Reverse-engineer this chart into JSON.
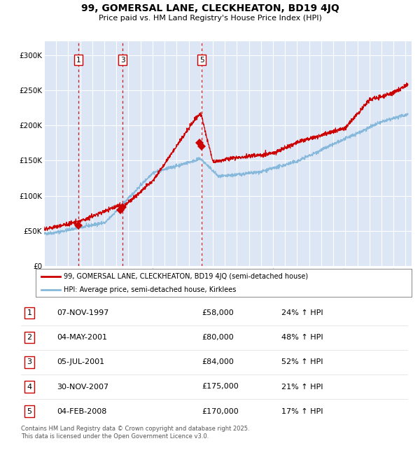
{
  "title": "99, GOMERSAL LANE, CLECKHEATON, BD19 4JQ",
  "subtitle": "Price paid vs. HM Land Registry's House Price Index (HPI)",
  "bg_color": "#dce6f5",
  "grid_color": "#ffffff",
  "red_line_color": "#cc0000",
  "blue_line_color": "#85b8db",
  "ylim": [
    0,
    320000
  ],
  "yticks": [
    0,
    50000,
    100000,
    150000,
    200000,
    250000,
    300000
  ],
  "ytick_labels": [
    "£0",
    "£50K",
    "£100K",
    "£150K",
    "£200K",
    "£250K",
    "£300K"
  ],
  "x_start_year": 1995,
  "x_end_year": 2025,
  "sale_events": [
    {
      "label": "1",
      "year": 1997.85,
      "price": 58000
    },
    {
      "label": "2",
      "year": 2001.34,
      "price": 80000
    },
    {
      "label": "3",
      "year": 2001.51,
      "price": 84000
    },
    {
      "label": "4",
      "year": 2007.92,
      "price": 175000
    },
    {
      "label": "5",
      "year": 2008.09,
      "price": 170000
    }
  ],
  "vline_labels": [
    "1",
    "3",
    "5"
  ],
  "vline_years": [
    1997.85,
    2001.51,
    2008.09
  ],
  "legend_entries": [
    "99, GOMERSAL LANE, CLECKHEATON, BD19 4JQ (semi-detached house)",
    "HPI: Average price, semi-detached house, Kirklees"
  ],
  "table_data": [
    [
      "1",
      "07-NOV-1997",
      "£58,000",
      "24% ↑ HPI"
    ],
    [
      "2",
      "04-MAY-2001",
      "£80,000",
      "48% ↑ HPI"
    ],
    [
      "3",
      "05-JUL-2001",
      "£84,000",
      "52% ↑ HPI"
    ],
    [
      "4",
      "30-NOV-2007",
      "£175,000",
      "21% ↑ HPI"
    ],
    [
      "5",
      "04-FEB-2008",
      "£170,000",
      "17% ↑ HPI"
    ]
  ],
  "footer_text": "Contains HM Land Registry data © Crown copyright and database right 2025.\nThis data is licensed under the Open Government Licence v3.0."
}
